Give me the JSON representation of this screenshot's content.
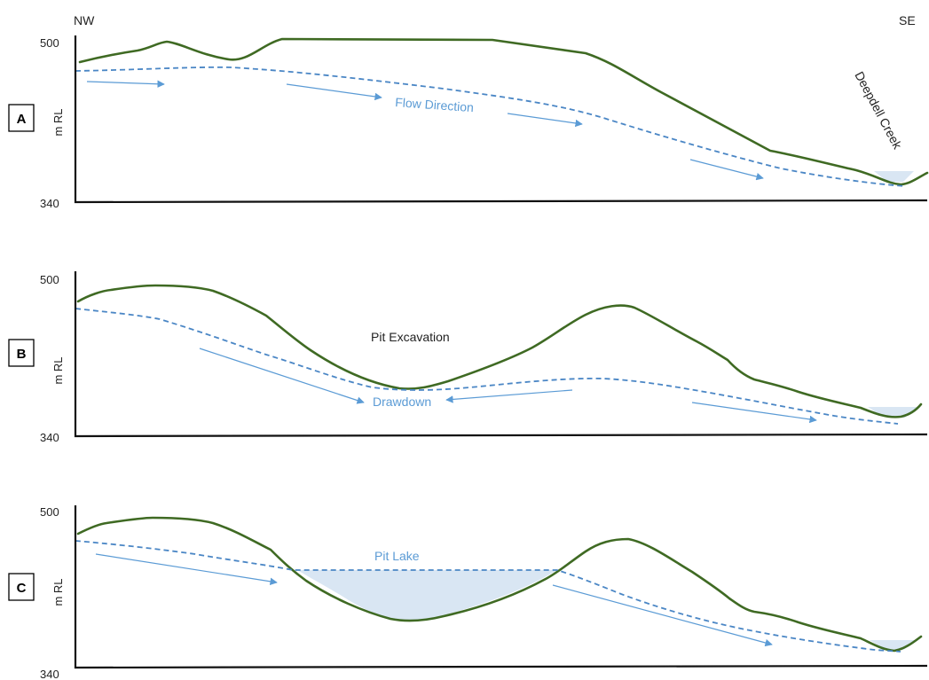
{
  "header": {
    "left_label": "NW",
    "right_label": "SE"
  },
  "panels": [
    {
      "letter": "A",
      "y_top": "500",
      "y_bottom": "340",
      "y_axis_label": "m RL",
      "labels": {
        "flow": "Flow Direction",
        "creek": "Deepdell Creek"
      }
    },
    {
      "letter": "B",
      "y_top": "500",
      "y_bottom": "340",
      "y_axis_label": "m RL",
      "labels": {
        "pit": "Pit Excavation",
        "drawdown": "Drawdown"
      }
    },
    {
      "letter": "C",
      "y_top": "500",
      "y_bottom": "340",
      "y_axis_label": "m RL",
      "labels": {
        "lake": "Pit Lake"
      }
    }
  ],
  "colors": {
    "ground": "#3f6a23",
    "water_table": "#4a86c5",
    "flow_arrow": "#5b9bd5",
    "water_fill": "#d9e6f3"
  }
}
